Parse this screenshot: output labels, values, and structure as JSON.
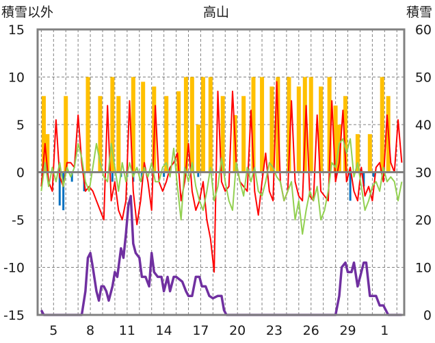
{
  "chart_data": {
    "type": "line",
    "title": "高山",
    "y_left_label": "積雪以外",
    "y_right_label": "積雪",
    "ylim_left": [
      -15,
      15
    ],
    "ylim_right": [
      0,
      60
    ],
    "left_ticks": [
      "15",
      "10",
      "5",
      "0",
      "-5",
      "-10",
      "-15"
    ],
    "right_ticks": [
      "60",
      "50",
      "40",
      "30",
      "20",
      "10",
      "0"
    ],
    "x_tick_labels": [
      "5",
      "8",
      "11",
      "14",
      "17",
      "20",
      "23",
      "26",
      "29",
      "1"
    ],
    "x_tick_days": [
      5,
      8,
      11,
      14,
      17,
      20,
      23,
      26,
      29,
      32
    ],
    "x_range_days": [
      3.7,
      33.6
    ],
    "grid": true,
    "colors": {
      "precipitation": "#ffc000",
      "temperature": "#ff0000",
      "green_series": "#92d050",
      "blue_series": "#0070c0",
      "snow_depth": "#7030a0",
      "frame": "#808080",
      "grid": "#808080"
    },
    "series": [
      {
        "axis": "left",
        "style": "bar",
        "color": "#ffc000",
        "days": [
          4.2,
          4.5,
          6.0,
          7.8,
          8.8,
          9.8,
          10.3,
          11.5,
          12.3,
          13.2,
          14.2,
          15.2,
          15.8,
          16.3,
          16.8,
          17.2,
          17.8,
          18.8,
          19.8,
          20.5,
          21.3,
          22.0,
          22.8,
          23.3,
          24.2,
          25.0,
          25.5,
          26.0,
          26.8,
          27.5,
          28.0,
          28.3,
          28.8,
          29.8,
          30.8,
          31.8,
          32.3
        ],
        "values": [
          8,
          4,
          8,
          10,
          8,
          10,
          8,
          10,
          9.5,
          9,
          8,
          8.5,
          10,
          10,
          5,
          10,
          10,
          8,
          6,
          8,
          10,
          10,
          9,
          10,
          10,
          9,
          10,
          10,
          9,
          10,
          7,
          5,
          8,
          4,
          4,
          10,
          8
        ]
      },
      {
        "axis": "left",
        "style": "line",
        "color": "#ff0000",
        "x": [
          4.0,
          4.3,
          4.6,
          4.9,
          5.2,
          5.5,
          5.8,
          6.1,
          6.4,
          6.7,
          7.0,
          7.3,
          7.6,
          7.9,
          8.2,
          8.5,
          8.8,
          9.1,
          9.4,
          9.7,
          10.0,
          10.3,
          10.6,
          10.9,
          11.2,
          11.5,
          11.8,
          12.1,
          12.4,
          12.7,
          13.0,
          13.3,
          13.6,
          13.9,
          14.2,
          14.5,
          14.8,
          15.1,
          15.4,
          15.7,
          16.0,
          16.3,
          16.6,
          16.9,
          17.2,
          17.5,
          17.8,
          18.1,
          18.4,
          18.7,
          19.0,
          19.3,
          19.6,
          19.9,
          20.2,
          20.5,
          20.8,
          21.1,
          21.4,
          21.7,
          22.0,
          22.3,
          22.6,
          22.9,
          23.2,
          23.5,
          23.8,
          24.1,
          24.4,
          24.7,
          25.0,
          25.3,
          25.6,
          25.9,
          26.2,
          26.5,
          26.8,
          27.1,
          27.4,
          27.7,
          28.0,
          28.3,
          28.6,
          28.9,
          29.2,
          29.5,
          29.8,
          30.1,
          30.4,
          30.7,
          31.0,
          31.3,
          31.6,
          31.9,
          32.2,
          32.5,
          32.8,
          33.1,
          33.4
        ],
        "y": [
          -1.5,
          3.0,
          -1.0,
          -2.0,
          5.5,
          -0.5,
          -1.5,
          1.0,
          1.0,
          0.5,
          6.0,
          1.0,
          -2.0,
          -1.5,
          -2.0,
          -3.0,
          -4.0,
          -5.0,
          7.0,
          -3.0,
          -1.0,
          -4.0,
          -5.0,
          -3.0,
          7.5,
          -2.0,
          -5.5,
          -3.0,
          1.0,
          -1.0,
          -4.0,
          7.0,
          -1.0,
          -2.0,
          -1.0,
          0.5,
          1.0,
          2.0,
          -3.0,
          -1.0,
          3.0,
          -2.0,
          -4.0,
          -3.0,
          -1.0,
          -5.0,
          -7.0,
          -10.5,
          8.5,
          -1.0,
          -2.0,
          -1.5,
          8.5,
          1.0,
          -1.0,
          -1.5,
          -2.0,
          6.5,
          -2.0,
          -4.5,
          -1.0,
          2.0,
          -2.0,
          -3.0,
          9.5,
          -1.0,
          -3.0,
          -2.0,
          7.5,
          -1.0,
          -2.5,
          -3.0,
          7.0,
          -2.5,
          -3.0,
          6.0,
          -2.0,
          -2.5,
          -3.0,
          7.5,
          -1.0,
          1.0,
          6.5,
          -1.0,
          0.5,
          -2.0,
          -3.0,
          0.5,
          -2.5,
          -1.5,
          -3.0,
          0.5,
          1.0,
          -1.0,
          6.0,
          1.0,
          0.0,
          5.5,
          1.0
        ]
      },
      {
        "axis": "left",
        "style": "line",
        "color": "#92d050",
        "x": [
          4.0,
          4.3,
          4.6,
          4.9,
          5.2,
          5.5,
          5.8,
          6.1,
          6.4,
          6.7,
          7.0,
          7.3,
          7.6,
          7.9,
          8.2,
          8.5,
          8.8,
          9.1,
          9.4,
          9.7,
          10.0,
          10.3,
          10.6,
          10.9,
          11.2,
          11.5,
          11.8,
          12.1,
          12.4,
          12.7,
          13.0,
          13.3,
          13.6,
          13.9,
          14.2,
          14.5,
          14.8,
          15.1,
          15.4,
          15.7,
          16.0,
          16.3,
          16.6,
          16.9,
          17.2,
          17.5,
          17.8,
          18.1,
          18.4,
          18.7,
          19.0,
          19.3,
          19.6,
          19.9,
          20.2,
          20.5,
          20.8,
          21.1,
          21.4,
          21.7,
          22.0,
          22.3,
          22.6,
          22.9,
          23.2,
          23.5,
          23.8,
          24.1,
          24.4,
          24.7,
          25.0,
          25.3,
          25.6,
          25.9,
          26.2,
          26.5,
          26.8,
          27.1,
          27.4,
          27.7,
          28.0,
          28.3,
          28.6,
          28.9,
          29.2,
          29.5,
          29.8,
          30.1,
          30.4,
          30.7,
          31.0,
          31.3,
          31.6,
          31.9,
          32.2,
          32.5,
          32.8,
          33.1,
          33.4
        ],
        "y": [
          -2.0,
          1.0,
          -1.5,
          0.5,
          -1.0,
          1.0,
          -1.5,
          0.5,
          -0.5,
          0.5,
          3.0,
          1.5,
          -1.0,
          -2.0,
          0.5,
          3.0,
          1.0,
          -0.5,
          -1.0,
          3.0,
          0.5,
          -2.0,
          1.0,
          -1.0,
          1.0,
          -0.5,
          0.5,
          -1.0,
          0.5,
          -0.5,
          1.0,
          -1.0,
          -1.0,
          0.5,
          1.0,
          -0.5,
          2.5,
          -1.5,
          -5.0,
          0.5,
          -1.0,
          1.0,
          -1.5,
          -3.0,
          -4.0,
          -2.0,
          0.5,
          -3.0,
          -1.5,
          1.5,
          -1.0,
          -3.0,
          -4.0,
          1.0,
          -1.0,
          -2.5,
          0.5,
          -1.0,
          0.5,
          -2.0,
          -2.5,
          -1.0,
          1.0,
          0.5,
          -0.5,
          -1.0,
          -3.0,
          -2.0,
          -1.0,
          -5.0,
          -3.0,
          -6.5,
          -4.0,
          -2.0,
          -3.0,
          -1.5,
          -5.0,
          -4.0,
          -2.0,
          1.0,
          0.5,
          3.0,
          3.5,
          2.0,
          3.5,
          -0.5,
          1.0,
          -1.5,
          -4.0,
          -3.0,
          -1.5,
          -1.0,
          -2.0,
          0.5,
          -1.0,
          -0.5,
          -1.0,
          -3.0,
          -1.0
        ]
      },
      {
        "axis": "left",
        "style": "bar",
        "color": "#0070c0",
        "days": [
          5.5,
          5.8,
          6.5,
          7.5,
          9.8,
          10.5,
          11.0,
          11.5,
          12.2,
          14.0,
          16.8,
          28.0,
          29.2,
          30.3,
          31.1
        ],
        "values": [
          -3.5,
          -4,
          -1,
          -2,
          -1,
          -0.5,
          -0.5,
          -1,
          -1,
          -0.5,
          -0.5,
          -0.5,
          -3,
          -1.5,
          -0.5
        ]
      },
      {
        "axis": "right",
        "style": "line",
        "color": "#7030a0",
        "x": [
          4.0,
          4.2,
          4.4,
          5.0,
          6.0,
          7.0,
          7.3,
          7.6,
          7.8,
          8.0,
          8.2,
          8.5,
          8.7,
          8.9,
          9.1,
          9.3,
          9.5,
          9.8,
          10.0,
          10.2,
          10.5,
          10.7,
          10.9,
          11.1,
          11.3,
          11.5,
          11.7,
          12.0,
          12.2,
          12.5,
          12.8,
          13.0,
          13.2,
          13.5,
          13.8,
          14.0,
          14.3,
          14.5,
          14.8,
          15.0,
          15.5,
          15.8,
          16.0,
          16.3,
          16.6,
          16.9,
          17.1,
          17.4,
          17.7,
          18.0,
          18.4,
          18.7,
          18.9,
          19.1,
          19.3,
          20,
          21,
          22,
          23,
          24,
          25,
          26,
          27,
          28,
          28.3,
          28.5,
          28.8,
          29.0,
          29.3,
          29.5,
          29.8,
          30.0,
          30.3,
          30.5,
          30.8,
          31.0,
          31.3,
          31.6,
          31.9,
          32.1,
          32.3,
          32.5,
          33.4
        ],
        "y": [
          1.0,
          0.0,
          0.0,
          0.0,
          0.0,
          0.0,
          0.0,
          5.0,
          12.0,
          13.0,
          10.0,
          5.0,
          3.0,
          6.0,
          6.0,
          5.0,
          3.0,
          6.0,
          9.0,
          8.0,
          14.0,
          12.0,
          17.0,
          23.0,
          25.0,
          15.0,
          13.0,
          12.0,
          8.0,
          8.0,
          6.0,
          13.0,
          9.0,
          8.0,
          8.0,
          5.0,
          8.0,
          5.0,
          8.0,
          8.0,
          7.0,
          5.0,
          4.0,
          4.0,
          8.0,
          8.0,
          6.0,
          6.0,
          4.0,
          3.5,
          4.0,
          4.0,
          1.0,
          0.0,
          0.0,
          0.0,
          0.0,
          0.0,
          0.0,
          0.0,
          0.0,
          0.0,
          0.0,
          0.0,
          4.0,
          10.0,
          11.0,
          9.0,
          9.0,
          11.0,
          6.0,
          8.0,
          11.0,
          11.0,
          4.0,
          4.0,
          4.0,
          2.0,
          2.0,
          1.0,
          0.0,
          0.0,
          0.0
        ]
      }
    ]
  }
}
